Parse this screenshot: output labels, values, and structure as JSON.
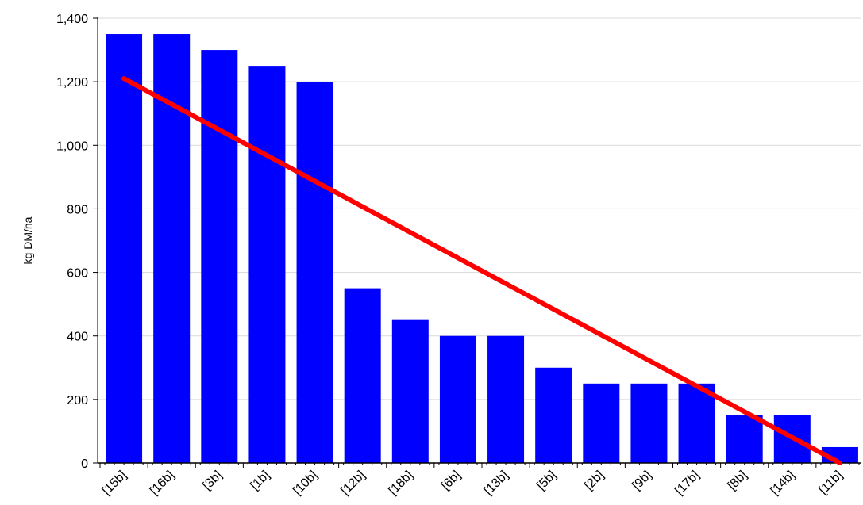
{
  "chart_data": {
    "type": "bar",
    "title": "",
    "xlabel": "",
    "ylabel": "kg DM/ha",
    "categories": [
      "[15b]",
      "[16b]",
      "[3b]",
      "[1b]",
      "[10b]",
      "[12b]",
      "[18b]",
      "[6b]",
      "[13b]",
      "[5b]",
      "[2b]",
      "[9b]",
      "[17b]",
      "[8b]",
      "[14b]",
      "[11b]"
    ],
    "values": [
      1350,
      1350,
      1300,
      1250,
      1200,
      550,
      450,
      400,
      400,
      300,
      250,
      250,
      250,
      150,
      150,
      50
    ],
    "ylim": [
      0,
      1400
    ],
    "yticks": [
      0,
      200,
      400,
      600,
      800,
      1000,
      1200,
      1400
    ],
    "ytick_labels": [
      "0",
      "200",
      "400",
      "600",
      "800",
      "1,000",
      "1,200",
      "1,400"
    ],
    "grid": true,
    "trendline": {
      "type": "linear",
      "start": {
        "category": "[15b]",
        "value": 1210
      },
      "end": {
        "category": "[11b]",
        "value": 0
      }
    },
    "colors": {
      "bar": "#0000ff",
      "trendline": "#ff0000",
      "grid": "#d9d9d9",
      "axis": "#000000"
    }
  }
}
